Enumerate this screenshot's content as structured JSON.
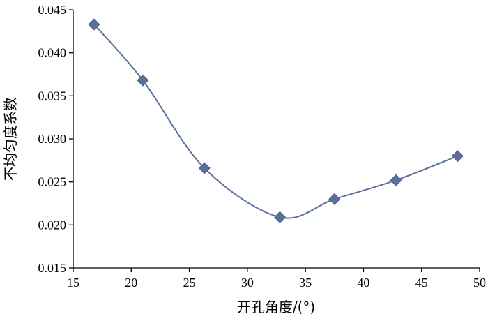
{
  "chart_data": {
    "type": "line",
    "title": "",
    "xlabel": "开孔角度/(°)",
    "ylabel": "不均匀度系数",
    "xlim": [
      15,
      50
    ],
    "ylim": [
      0.015,
      0.045
    ],
    "x_ticks": [
      "15",
      "20",
      "25",
      "30",
      "35",
      "40",
      "45",
      "50"
    ],
    "y_ticks": [
      "0.015",
      "0.020",
      "0.025",
      "0.030",
      "0.035",
      "0.040",
      "0.045"
    ],
    "grid": false,
    "legend": "none",
    "smooth": true,
    "marker": "diamond",
    "color": "#5b6f9c",
    "series": [
      {
        "x": [
          16.8,
          21.0,
          26.3,
          32.8,
          37.5,
          42.8,
          48.1
        ],
        "values": [
          0.0433,
          0.0368,
          0.0266,
          0.0209,
          0.023,
          0.0252,
          0.028
        ]
      }
    ]
  }
}
